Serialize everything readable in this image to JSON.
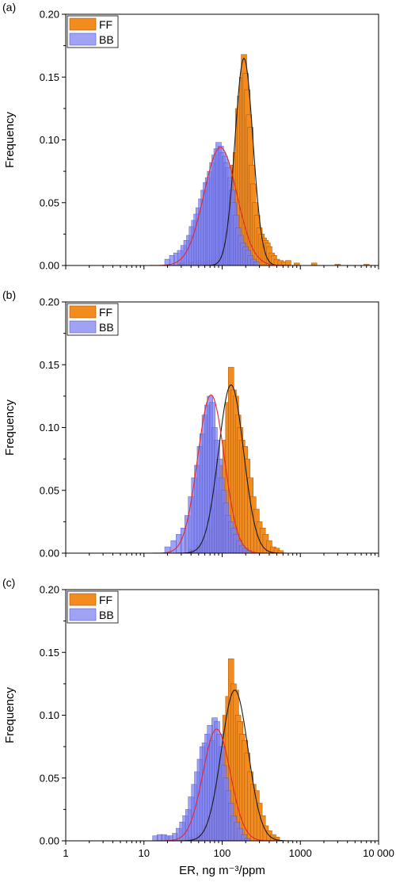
{
  "chart_data": [
    {
      "type": "bar",
      "panel_label": "(a)",
      "xscale": "log",
      "xlim": [
        1,
        10000
      ],
      "ylim": [
        0,
        0.2
      ],
      "ylabel": "Frequency",
      "xlabel": "",
      "yticks": [
        "0.00",
        "0.05",
        "0.10",
        "0.15",
        "0.20"
      ],
      "xticks": [],
      "legend": {
        "placement": "top-left",
        "entries": [
          "FF",
          "BB"
        ]
      },
      "series": [
        {
          "name": "FF",
          "color": "#f28c1e",
          "x": [
            5,
            20,
            31,
            40,
            50,
            60,
            70,
            80,
            90,
            100,
            110,
            120,
            130,
            140,
            150,
            160,
            170,
            180,
            190,
            200,
            210,
            220,
            230,
            240,
            250,
            265,
            280,
            300,
            320,
            340,
            360,
            380,
            400,
            430,
            460,
            500,
            560,
            620,
            700,
            900,
            1500,
            3000,
            7000
          ],
          "values": [
            0.0,
            0.0,
            0.002,
            0.003,
            0.004,
            0.003,
            0.004,
            0.005,
            0.008,
            0.012,
            0.025,
            0.038,
            0.06,
            0.08,
            0.09,
            0.125,
            0.135,
            0.15,
            0.168,
            0.153,
            0.14,
            0.12,
            0.11,
            0.08,
            0.065,
            0.05,
            0.04,
            0.03,
            0.025,
            0.022,
            0.02,
            0.018,
            0.015,
            0.01,
            0.008,
            0.005,
            0.004,
            0.003,
            0.004,
            0.002,
            0.002,
            0.001,
            0.001
          ],
          "fit_curve": {
            "type": "lognormal",
            "mode_x": 190,
            "peak": 0.165,
            "sigma_log10": 0.115,
            "color": "#1a1a1a"
          }
        },
        {
          "name": "BB",
          "color": "#7b7ff0",
          "x": [
            20,
            23,
            26,
            29,
            32,
            35,
            38,
            41,
            44,
            47,
            50,
            54,
            58,
            62,
            66,
            70,
            75,
            80,
            85,
            90,
            96,
            102,
            108,
            114,
            120,
            127,
            134,
            141,
            150,
            160,
            172,
            185,
            200,
            215,
            230,
            250,
            275
          ],
          "values": [
            0.005,
            0.008,
            0.01,
            0.012,
            0.016,
            0.02,
            0.024,
            0.031,
            0.036,
            0.041,
            0.046,
            0.053,
            0.06,
            0.066,
            0.07,
            0.075,
            0.082,
            0.088,
            0.093,
            0.098,
            0.095,
            0.09,
            0.087,
            0.082,
            0.078,
            0.07,
            0.06,
            0.05,
            0.04,
            0.03,
            0.024,
            0.018,
            0.015,
            0.012,
            0.008,
            0.005,
            0.003
          ],
          "fit_curve": {
            "type": "lognormal",
            "mode_x": 95,
            "peak": 0.094,
            "sigma_log10": 0.21,
            "color": "#e8262a"
          }
        }
      ]
    },
    {
      "type": "bar",
      "panel_label": "(b)",
      "xscale": "log",
      "xlim": [
        1,
        10000
      ],
      "ylim": [
        0,
        0.2
      ],
      "ylabel": "Frequency",
      "xlabel": "",
      "yticks": [
        "0.00",
        "0.05",
        "0.10",
        "0.15",
        "0.20"
      ],
      "xticks": [],
      "legend": {
        "placement": "top-left",
        "entries": [
          "FF",
          "BB"
        ]
      },
      "series": [
        {
          "name": "FF",
          "color": "#f28c1e",
          "x": [
            30,
            40,
            50,
            60,
            70,
            80,
            90,
            100,
            110,
            120,
            130,
            140,
            150,
            160,
            170,
            180,
            195,
            210,
            230,
            250,
            275,
            300,
            330,
            360,
            400,
            450,
            500,
            560
          ],
          "values": [
            0.0,
            0.003,
            0.006,
            0.01,
            0.02,
            0.035,
            0.05,
            0.07,
            0.09,
            0.12,
            0.148,
            0.13,
            0.125,
            0.11,
            0.1,
            0.09,
            0.085,
            0.075,
            0.06,
            0.045,
            0.035,
            0.025,
            0.02,
            0.015,
            0.01,
            0.005,
            0.004,
            0.002
          ],
          "fit_curve": {
            "type": "lognormal",
            "mode_x": 130,
            "peak": 0.134,
            "sigma_log10": 0.16,
            "color": "#1a1a1a"
          }
        },
        {
          "name": "BB",
          "color": "#7b7ff0",
          "x": [
            20,
            24,
            28,
            32,
            36,
            40,
            44,
            48,
            52,
            56,
            60,
            65,
            70,
            75,
            80,
            86,
            92,
            98,
            105,
            112,
            120,
            130,
            140,
            150,
            165,
            180,
            200,
            220
          ],
          "values": [
            0.005,
            0.01,
            0.015,
            0.02,
            0.03,
            0.045,
            0.06,
            0.07,
            0.085,
            0.095,
            0.11,
            0.118,
            0.125,
            0.12,
            0.1,
            0.09,
            0.075,
            0.06,
            0.05,
            0.04,
            0.03,
            0.025,
            0.02,
            0.015,
            0.01,
            0.006,
            0.004,
            0.002
          ],
          "fit_curve": {
            "type": "lognormal",
            "mode_x": 72,
            "peak": 0.126,
            "sigma_log10": 0.17,
            "color": "#e8262a"
          }
        }
      ]
    },
    {
      "type": "bar",
      "panel_label": "(c)",
      "xscale": "log",
      "xlim": [
        1,
        10000
      ],
      "ylim": [
        0,
        0.2
      ],
      "ylabel": "Frequency",
      "xlabel": "ER, ng m⁻³/ppm",
      "yticks": [
        "0.00",
        "0.05",
        "0.10",
        "0.15",
        "0.20"
      ],
      "xticks": [
        "1",
        "10",
        "100",
        "1000",
        "10 000"
      ],
      "legend": {
        "placement": "top-left",
        "entries": [
          "FF",
          "BB"
        ]
      },
      "series": [
        {
          "name": "FF",
          "color": "#f28c1e",
          "x": [
            30,
            40,
            50,
            60,
            70,
            80,
            90,
            100,
            110,
            120,
            130,
            140,
            150,
            160,
            170,
            180,
            195,
            210,
            230,
            250,
            275,
            300,
            330,
            360,
            400,
            450,
            500
          ],
          "values": [
            0.0,
            0.003,
            0.006,
            0.012,
            0.02,
            0.03,
            0.05,
            0.07,
            0.1,
            0.115,
            0.145,
            0.125,
            0.12,
            0.1,
            0.095,
            0.085,
            0.08,
            0.07,
            0.055,
            0.045,
            0.04,
            0.03,
            0.02,
            0.012,
            0.008,
            0.005,
            0.003
          ],
          "fit_curve": {
            "type": "lognormal",
            "mode_x": 145,
            "peak": 0.12,
            "sigma_log10": 0.17,
            "color": "#1a1a1a"
          }
        },
        {
          "name": "BB",
          "color": "#7b7ff0",
          "x": [
            14,
            16,
            18,
            20,
            22,
            25,
            28,
            31,
            34,
            37,
            40,
            44,
            48,
            52,
            56,
            60,
            65,
            70,
            75,
            80,
            86,
            92,
            98,
            105,
            112,
            120,
            130,
            140,
            155,
            170,
            190,
            210
          ],
          "values": [
            0.004,
            0.005,
            0.005,
            0.004,
            0.004,
            0.006,
            0.01,
            0.015,
            0.02,
            0.025,
            0.035,
            0.045,
            0.055,
            0.065,
            0.075,
            0.078,
            0.085,
            0.092,
            0.08,
            0.098,
            0.095,
            0.085,
            0.075,
            0.06,
            0.05,
            0.04,
            0.03,
            0.02,
            0.015,
            0.01,
            0.005,
            0.002
          ],
          "fit_curve": {
            "type": "lognormal",
            "mode_x": 85,
            "peak": 0.089,
            "sigma_log10": 0.175,
            "color": "#e8262a"
          }
        }
      ]
    }
  ]
}
